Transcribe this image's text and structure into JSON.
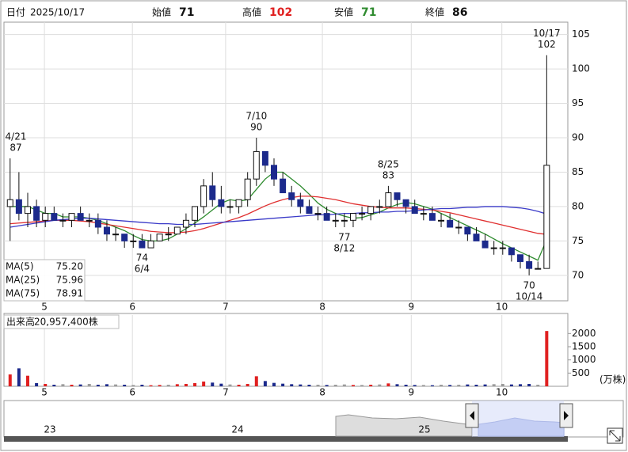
{
  "header": {
    "date_label": "日付",
    "date": "2025/10/17",
    "open_label": "始値",
    "open": 71,
    "high_label": "高値",
    "high": 102,
    "low_label": "安値",
    "low": 71,
    "close_label": "終値",
    "close": 86
  },
  "chart_data": [
    {
      "type": "candlestick",
      "xlim": [
        -0.7,
        63.4
      ],
      "ylim": [
        66.3,
        106.8
      ],
      "yticks": [
        70,
        75,
        80,
        85,
        90,
        95,
        100,
        105
      ],
      "xticks": [
        {
          "value": 3.9,
          "label": "5"
        },
        {
          "value": 13.9,
          "label": "6"
        },
        {
          "value": 24.5,
          "label": "7"
        },
        {
          "value": 35.5,
          "label": "8"
        },
        {
          "value": 45.6,
          "label": "9"
        },
        {
          "value": 55.9,
          "label": "10"
        }
      ],
      "grid": true,
      "up_color": "#ffffff",
      "down_color": "#1c2a8c",
      "candles": [
        [
          80,
          87,
          75,
          81
        ],
        [
          81,
          85,
          78,
          79
        ],
        [
          79,
          82,
          77,
          80
        ],
        [
          80,
          81,
          77,
          78
        ],
        [
          78,
          80,
          77,
          79
        ],
        [
          79,
          80,
          78,
          78
        ],
        [
          78,
          79,
          77,
          78
        ],
        [
          78,
          79,
          77,
          79
        ],
        [
          79,
          80,
          78,
          78
        ],
        [
          78,
          79,
          77,
          78
        ],
        [
          78,
          79,
          76,
          77
        ],
        [
          77,
          78,
          75,
          76
        ],
        [
          76,
          77,
          75,
          76
        ],
        [
          76,
          76,
          74,
          75
        ],
        [
          75,
          76,
          74,
          75
        ],
        [
          75,
          76,
          74,
          74
        ],
        [
          74,
          76,
          74,
          75
        ],
        [
          75,
          76,
          75,
          76
        ],
        [
          76,
          77,
          75,
          76
        ],
        [
          76,
          77,
          76,
          77
        ],
        [
          77,
          79,
          76,
          78
        ],
        [
          78,
          80,
          77,
          80
        ],
        [
          80,
          84,
          79,
          83
        ],
        [
          83,
          85,
          80,
          81
        ],
        [
          81,
          83,
          79,
          80
        ],
        [
          80,
          81,
          79,
          80
        ],
        [
          80,
          81,
          79,
          81
        ],
        [
          81,
          85,
          80,
          84
        ],
        [
          84,
          90,
          83,
          88
        ],
        [
          88,
          88,
          85,
          86
        ],
        [
          86,
          87,
          83,
          84
        ],
        [
          84,
          85,
          82,
          82
        ],
        [
          82,
          83,
          80,
          81
        ],
        [
          81,
          82,
          79,
          80
        ],
        [
          80,
          81,
          79,
          79
        ],
        [
          79,
          80,
          78,
          79
        ],
        [
          79,
          80,
          78,
          78
        ],
        [
          78,
          79,
          77,
          78
        ],
        [
          78,
          79,
          77,
          78
        ],
        [
          78,
          79,
          77,
          79
        ],
        [
          79,
          80,
          78,
          79
        ],
        [
          79,
          80,
          78,
          80
        ],
        [
          80,
          81,
          79,
          80
        ],
        [
          80,
          83,
          80,
          82
        ],
        [
          82,
          82,
          80,
          81
        ],
        [
          81,
          81,
          79,
          80
        ],
        [
          80,
          81,
          79,
          79
        ],
        [
          79,
          80,
          78,
          79
        ],
        [
          79,
          80,
          78,
          78
        ],
        [
          78,
          79,
          77,
          78
        ],
        [
          78,
          79,
          77,
          77
        ],
        [
          77,
          78,
          76,
          77
        ],
        [
          77,
          77,
          75,
          76
        ],
        [
          76,
          77,
          75,
          75
        ],
        [
          75,
          76,
          74,
          74
        ],
        [
          74,
          75,
          73,
          74
        ],
        [
          74,
          75,
          73,
          74
        ],
        [
          74,
          74,
          72,
          73
        ],
        [
          73,
          73,
          71,
          72
        ],
        [
          72,
          73,
          70,
          71
        ],
        [
          71,
          72,
          71,
          71
        ],
        [
          71,
          102,
          71,
          86
        ]
      ],
      "series": [
        {
          "name": "MA(5)",
          "last": "75.20",
          "color": "#2e8b2e",
          "values": [
            80,
            80,
            80,
            79.5,
            79,
            79,
            78.5,
            78.5,
            78.5,
            78.3,
            78,
            77.5,
            77,
            76.5,
            75.8,
            75.2,
            75,
            75,
            75.3,
            76,
            76.8,
            77.6,
            78.5,
            79.5,
            80.5,
            81,
            80.8,
            81,
            82.5,
            84,
            85,
            85,
            84,
            83,
            81.8,
            80.5,
            79.6,
            79,
            78.6,
            78.3,
            78.4,
            78.8,
            79.2,
            79.8,
            80.3,
            80.6,
            80.4,
            80,
            79.6,
            79,
            78.4,
            77.8,
            77.2,
            76.6,
            76,
            75.3,
            74.6,
            74,
            73.4,
            72.8,
            72.2,
            75.2
          ]
        },
        {
          "name": "MA(25)",
          "last": "75.96",
          "color": "#e03030",
          "values": [
            77.5,
            77.6,
            77.7,
            77.8,
            77.9,
            78,
            78,
            78,
            77.9,
            77.8,
            77.6,
            77.4,
            77.2,
            77,
            76.8,
            76.6,
            76.4,
            76.3,
            76.2,
            76.2,
            76.3,
            76.5,
            76.8,
            77.2,
            77.6,
            78,
            78.4,
            78.9,
            79.5,
            80.1,
            80.6,
            81,
            81.3,
            81.5,
            81.5,
            81.4,
            81.2,
            81,
            80.7,
            80.4,
            80.2,
            80,
            79.9,
            79.8,
            79.8,
            79.8,
            79.7,
            79.6,
            79.5,
            79.3,
            79.1,
            78.8,
            78.5,
            78.2,
            77.9,
            77.6,
            77.3,
            77,
            76.7,
            76.4,
            76.1,
            75.96
          ]
        },
        {
          "name": "MA(75)",
          "last": "78.91",
          "color": "#3a3ac8",
          "values": [
            77,
            77.2,
            77.4,
            77.6,
            77.8,
            78,
            78.1,
            78.2,
            78.3,
            78.3,
            78.2,
            78.1,
            78,
            77.9,
            77.8,
            77.7,
            77.6,
            77.5,
            77.5,
            77.4,
            77.4,
            77.4,
            77.5,
            77.6,
            77.7,
            77.8,
            77.9,
            78,
            78.1,
            78.2,
            78.3,
            78.4,
            78.5,
            78.6,
            78.7,
            78.8,
            78.8,
            78.9,
            79,
            79,
            79.1,
            79.1,
            79.2,
            79.2,
            79.3,
            79.3,
            79.4,
            79.5,
            79.6,
            79.7,
            79.7,
            79.8,
            79.9,
            79.9,
            80,
            80,
            80,
            79.9,
            79.8,
            79.6,
            79.3,
            78.91
          ]
        }
      ],
      "annotations": [
        {
          "at": 0,
          "date": "4/21",
          "value": 87,
          "side": "above"
        },
        {
          "at": 15,
          "date": "6/4",
          "value": 74,
          "side": "below"
        },
        {
          "at": 28,
          "date": "7/10",
          "value": 90,
          "side": "above"
        },
        {
          "at": 38,
          "date": "8/12",
          "value": 77,
          "side": "below"
        },
        {
          "at": 43,
          "date": "8/25",
          "value": 83,
          "side": "above"
        },
        {
          "at": 59,
          "date": "10/14",
          "value": 70,
          "side": "below"
        },
        {
          "at": 61,
          "date": "10/17",
          "value": 102,
          "side": "above"
        }
      ]
    },
    {
      "type": "bar",
      "title": "出来高",
      "total": "20,957,400株",
      "unit": "(万株)",
      "xlim": [
        -0.7,
        63.4
      ],
      "ylim": [
        0,
        2700
      ],
      "yticks": [
        500,
        1000,
        1500,
        2000
      ],
      "xticks": [
        {
          "value": 3.9,
          "label": "5"
        },
        {
          "value": 13.9,
          "label": "6"
        },
        {
          "value": 24.5,
          "label": "7"
        },
        {
          "value": 35.5,
          "label": "8"
        },
        {
          "value": 45.6,
          "label": "9"
        },
        {
          "value": 55.9,
          "label": "10"
        }
      ],
      "up_color": "#e02020",
      "down_color": "#1c2a8c",
      "flat_color": "#9a9a9a",
      "values": [
        450,
        680,
        400,
        120,
        90,
        60,
        80,
        60,
        70,
        90,
        60,
        80,
        70,
        60,
        50,
        60,
        40,
        50,
        60,
        80,
        90,
        120,
        180,
        140,
        100,
        70,
        60,
        90,
        380,
        200,
        130,
        100,
        80,
        70,
        60,
        60,
        50,
        60,
        70,
        50,
        50,
        60,
        70,
        110,
        80,
        60,
        50,
        50,
        40,
        60,
        50,
        60,
        70,
        60,
        70,
        80,
        90,
        70,
        80,
        90,
        60,
        2095.74
      ]
    }
  ],
  "navigator": {
    "labels": [
      "23",
      "24",
      "25"
    ]
  }
}
